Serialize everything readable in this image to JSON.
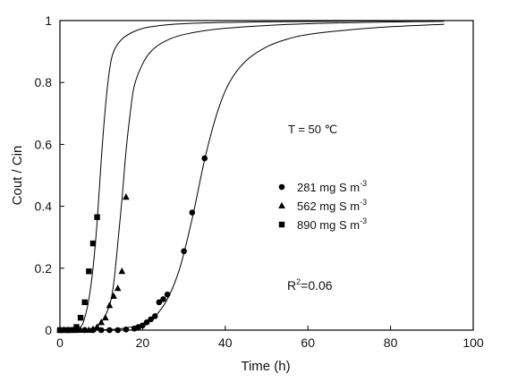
{
  "chart_data": {
    "type": "scatter",
    "xlabel": "Time (h)",
    "ylabel": "Cout / Cin",
    "xlim": [
      0,
      100
    ],
    "ylim": [
      0,
      1
    ],
    "xticks": [
      "0",
      "20",
      "40",
      "60",
      "80",
      "100"
    ],
    "yticks": [
      "0",
      "0.2",
      "0.4",
      "0.6",
      "0.8",
      "1"
    ],
    "grid": false,
    "legend_position": "center-right",
    "annotations": {
      "temperature": "T  =  50  ℃",
      "r2_base": "R",
      "r2_sup": "2",
      "r2_rest": "=0.06"
    },
    "series": [
      {
        "name": "281 mg S m",
        "name_sup": "-3",
        "marker": "circle",
        "points": [
          [
            0,
            0
          ],
          [
            2,
            0
          ],
          [
            4,
            0
          ],
          [
            6,
            0
          ],
          [
            8,
            0
          ],
          [
            10,
            0
          ],
          [
            12,
            0
          ],
          [
            14,
            0
          ],
          [
            16,
            0.002
          ],
          [
            18,
            0.005
          ],
          [
            19,
            0.01
          ],
          [
            20,
            0.015
          ],
          [
            21,
            0.025
          ],
          [
            22,
            0.035
          ],
          [
            23,
            0.045
          ],
          [
            24,
            0.09
          ],
          [
            25,
            0.1
          ],
          [
            26,
            0.115
          ],
          [
            30,
            0.255
          ],
          [
            32,
            0.38
          ],
          [
            35,
            0.555
          ]
        ],
        "fit": [
          [
            0,
            0
          ],
          [
            10,
            0.001
          ],
          [
            15,
            0.005
          ],
          [
            20,
            0.02
          ],
          [
            23,
            0.045
          ],
          [
            26,
            0.1
          ],
          [
            29,
            0.2
          ],
          [
            32,
            0.36
          ],
          [
            35,
            0.55
          ],
          [
            38,
            0.7
          ],
          [
            41,
            0.8
          ],
          [
            45,
            0.87
          ],
          [
            50,
            0.915
          ],
          [
            55,
            0.94
          ],
          [
            60,
            0.955
          ],
          [
            70,
            0.97
          ],
          [
            80,
            0.98
          ],
          [
            93,
            0.988
          ]
        ]
      },
      {
        "name": "562 mg S m",
        "name_sup": "-3",
        "marker": "triangle",
        "points": [
          [
            0,
            0
          ],
          [
            1,
            0
          ],
          [
            2,
            0
          ],
          [
            3,
            0
          ],
          [
            4,
            0
          ],
          [
            5,
            0
          ],
          [
            6,
            0
          ],
          [
            7,
            0
          ],
          [
            8,
            0.003
          ],
          [
            9,
            0.01
          ],
          [
            10,
            0.025
          ],
          [
            11,
            0.04
          ],
          [
            12,
            0.08
          ],
          [
            13,
            0.11
          ],
          [
            14,
            0.135
          ],
          [
            15,
            0.19
          ],
          [
            16,
            0.43
          ]
        ],
        "fit": [
          [
            0,
            0
          ],
          [
            5,
            0.001
          ],
          [
            8,
            0.006
          ],
          [
            10,
            0.025
          ],
          [
            12,
            0.08
          ],
          [
            13,
            0.15
          ],
          [
            14,
            0.28
          ],
          [
            15,
            0.42
          ],
          [
            16,
            0.58
          ],
          [
            17,
            0.7
          ],
          [
            18,
            0.79
          ],
          [
            20,
            0.86
          ],
          [
            22,
            0.9
          ],
          [
            25,
            0.93
          ],
          [
            30,
            0.955
          ],
          [
            40,
            0.975
          ],
          [
            60,
            0.99
          ],
          [
            93,
            0.998
          ]
        ]
      },
      {
        "name": "890 mg S m",
        "name_sup": "-3",
        "marker": "square",
        "points": [
          [
            0,
            0
          ],
          [
            1,
            0
          ],
          [
            2,
            0
          ],
          [
            3,
            0
          ],
          [
            4,
            0.01
          ],
          [
            5,
            0.04
          ],
          [
            6,
            0.09
          ],
          [
            7,
            0.19
          ],
          [
            8,
            0.28
          ],
          [
            9,
            0.365
          ]
        ],
        "fit": [
          [
            0,
            0
          ],
          [
            3,
            0.002
          ],
          [
            5,
            0.01
          ],
          [
            6,
            0.04
          ],
          [
            7,
            0.1
          ],
          [
            8,
            0.2
          ],
          [
            9,
            0.35
          ],
          [
            10,
            0.55
          ],
          [
            11,
            0.72
          ],
          [
            12,
            0.84
          ],
          [
            13,
            0.9
          ],
          [
            15,
            0.94
          ],
          [
            18,
            0.965
          ],
          [
            22,
            0.98
          ],
          [
            30,
            0.99
          ],
          [
            50,
            0.996
          ],
          [
            93,
            1.0
          ]
        ]
      }
    ]
  }
}
